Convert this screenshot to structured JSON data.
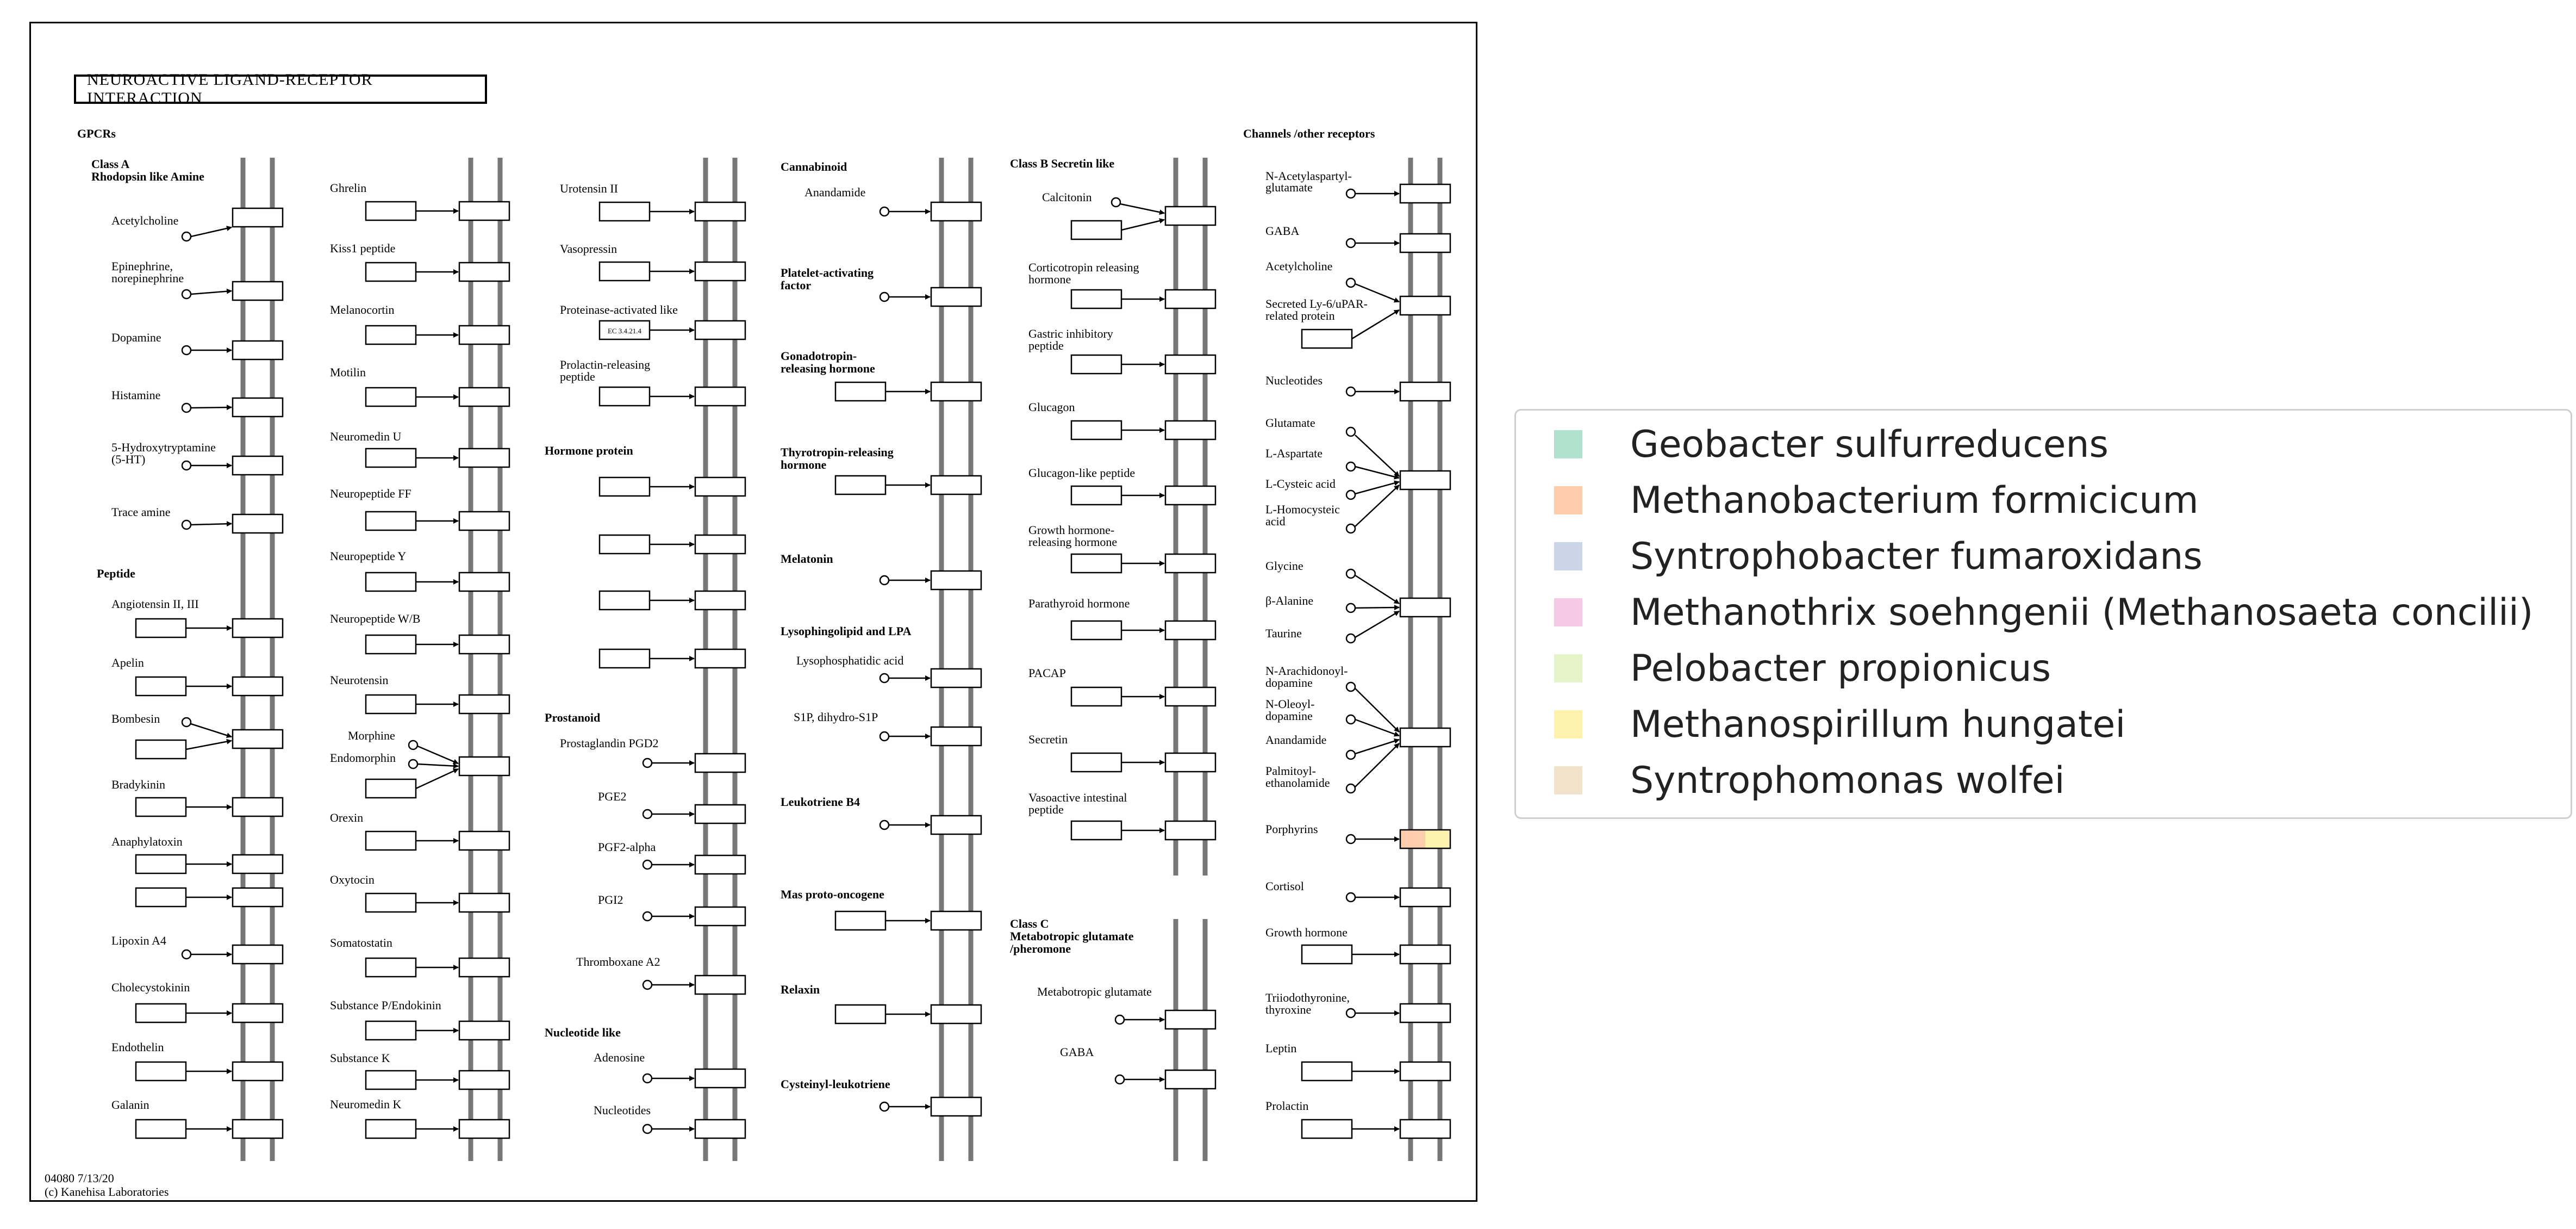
{
  "map": {
    "title": "NEUROACTIVE LIGAND-RECEPTOR INTERACTION",
    "footer_id": "04080 7/13/20",
    "footer_credit": "(c) Kanehisa Laboratories",
    "sections": [
      {
        "label": "GPCRs"
      },
      {
        "label": "Class A"
      },
      {
        "label": "Rhodopsin like Amine"
      },
      {
        "label": "Peptide"
      },
      {
        "label": "Hormone protein"
      },
      {
        "label": "Prostanoid"
      },
      {
        "label": "Nucleotide like"
      },
      {
        "label": "Cannabinoid"
      },
      {
        "label": "Platelet-activating"
      },
      {
        "label": "factor"
      },
      {
        "label": "Gonadotropin-"
      },
      {
        "label": "releasing hormone"
      },
      {
        "label": "Thyrotropin-releasing"
      },
      {
        "label": "hormone"
      },
      {
        "label": "Melatonin"
      },
      {
        "label": "Lysophingolipid and LPA"
      },
      {
        "label": "Leukotriene B4"
      },
      {
        "label": "Mas proto-oncogene"
      },
      {
        "label": "Relaxin"
      },
      {
        "label": "Cysteinyl-leukotriene"
      },
      {
        "label": "Class B Secretin like"
      },
      {
        "label": "Class C"
      },
      {
        "label": "Metabotropic glutamate"
      },
      {
        "label": "/pheromone"
      },
      {
        "label": "Channels /other receptors"
      }
    ],
    "ligands": [
      {
        "label": "Acetylcholine"
      },
      {
        "label": "Epinephrine,"
      },
      {
        "label": "norepinephrine"
      },
      {
        "label": "Dopamine"
      },
      {
        "label": "Histamine"
      },
      {
        "label": "5-Hydroxytryptamine"
      },
      {
        "label": "(5-HT)"
      },
      {
        "label": "Trace amine"
      },
      {
        "label": "Angiotensin II, III"
      },
      {
        "label": "Apelin"
      },
      {
        "label": "Bombesin"
      },
      {
        "label": "Bradykinin"
      },
      {
        "label": "Anaphylatoxin"
      },
      {
        "label": "Lipoxin A4"
      },
      {
        "label": "Cholecystokinin"
      },
      {
        "label": "Endothelin"
      },
      {
        "label": "Galanin"
      },
      {
        "label": "Ghrelin"
      },
      {
        "label": "Kiss1 peptide"
      },
      {
        "label": "Melanocortin"
      },
      {
        "label": "Motilin"
      },
      {
        "label": "Neuromedin U"
      },
      {
        "label": "Neuropeptide FF"
      },
      {
        "label": "Neuropeptide Y"
      },
      {
        "label": "Neuropeptide W/B"
      },
      {
        "label": "Neurotensin"
      },
      {
        "label": "Morphine"
      },
      {
        "label": "Endomorphin"
      },
      {
        "label": "Orexin"
      },
      {
        "label": "Oxytocin"
      },
      {
        "label": "Somatostatin"
      },
      {
        "label": "Substance P/Endokinin"
      },
      {
        "label": "Substance K"
      },
      {
        "label": "Neuromedin K"
      },
      {
        "label": "Urotensin II"
      },
      {
        "label": "Vasopressin"
      },
      {
        "label": "Proteinase-activated like"
      },
      {
        "label": "Prolactin-releasing"
      },
      {
        "label": "peptide"
      },
      {
        "label": "Prostaglandin PGD2"
      },
      {
        "label": "PGE2"
      },
      {
        "label": "PGF2-alpha"
      },
      {
        "label": "PGI2"
      },
      {
        "label": "Thromboxane A2"
      },
      {
        "label": "Adenosine"
      },
      {
        "label": "Nucleotides"
      },
      {
        "label": "Anandamide"
      },
      {
        "label": "Lysophosphatidic acid"
      },
      {
        "label": "S1P, dihydro-S1P"
      },
      {
        "label": "Calcitonin"
      },
      {
        "label": "Corticotropin releasing"
      },
      {
        "label": "hormone"
      },
      {
        "label": "Gastric inhibitory"
      },
      {
        "label": "peptide"
      },
      {
        "label": "Glucagon"
      },
      {
        "label": "Glucagon-like peptide"
      },
      {
        "label": "Growth hormone-"
      },
      {
        "label": "releasing hormone"
      },
      {
        "label": "Parathyroid hormone"
      },
      {
        "label": "PACAP"
      },
      {
        "label": "Secretin"
      },
      {
        "label": "Vasoactive intestinal"
      },
      {
        "label": "peptide"
      },
      {
        "label": "Metabotropic glutamate"
      },
      {
        "label": "GABA"
      },
      {
        "label": "N-Acetylaspartyl-"
      },
      {
        "label": "glutamate"
      },
      {
        "label": "GABA"
      },
      {
        "label": "Acetylcholine"
      },
      {
        "label": "Secreted Ly-6/uPAR-"
      },
      {
        "label": "related protein"
      },
      {
        "label": "Nucleotides"
      },
      {
        "label": "Glutamate"
      },
      {
        "label": "L-Aspartate"
      },
      {
        "label": "L-Cysteic acid"
      },
      {
        "label": "L-Homocysteic"
      },
      {
        "label": "acid"
      },
      {
        "label": "Glycine"
      },
      {
        "label": "β-Alanine"
      },
      {
        "label": "Taurine"
      },
      {
        "label": "N-Arachidonoyl-"
      },
      {
        "label": "dopamine"
      },
      {
        "label": "N-Oleoyl-"
      },
      {
        "label": "dopamine"
      },
      {
        "label": "Anandamide"
      },
      {
        "label": "Palmitoyl-"
      },
      {
        "label": "ethanolamide"
      },
      {
        "label": "Porphyrins"
      },
      {
        "label": "Cortisol"
      },
      {
        "label": "Growth hormone"
      },
      {
        "label": "Triiodothyronine,"
      },
      {
        "label": "thyroxine"
      },
      {
        "label": "Leptin"
      },
      {
        "label": "Prolactin"
      }
    ],
    "ec_label": "EC 3.4.21.4"
  },
  "legend": {
    "items": [
      {
        "label": "Geobacter sulfurreducens",
        "color": "#b2e2cd"
      },
      {
        "label": "Methanobacterium formicicum",
        "color": "#fdcdac"
      },
      {
        "label": "Syntrophobacter fumaroxidans",
        "color": "#cbd5e8"
      },
      {
        "label": "Methanothrix soehngenii (Methanosaeta concilii)",
        "color": "#f4cae4"
      },
      {
        "label": "Pelobacter propionicus",
        "color": "#e6f5c9"
      },
      {
        "label": "Methanospirillum hungatei",
        "color": "#fff2ae"
      },
      {
        "label": "Syntrophomonas wolfei",
        "color": "#f1e2cc"
      }
    ]
  }
}
